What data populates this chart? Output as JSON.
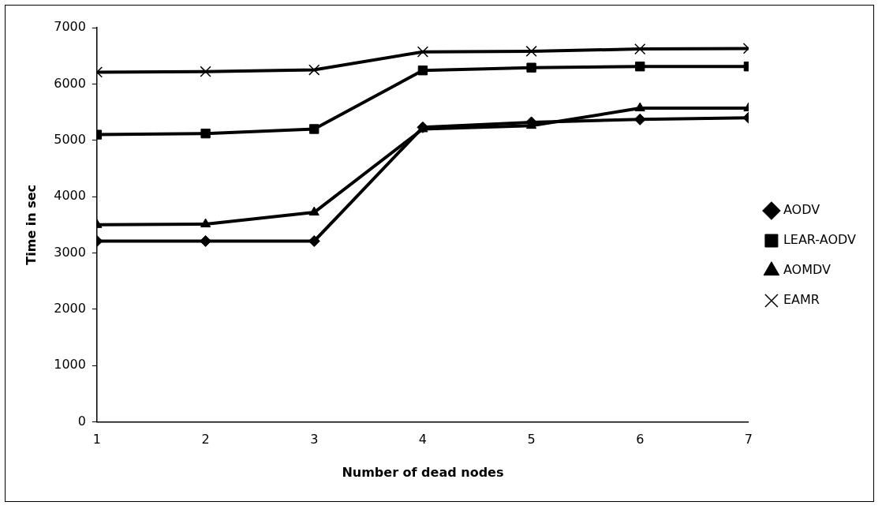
{
  "chart_data": {
    "type": "line",
    "xlabel": "Number of dead nodes",
    "ylabel": "Time in sec",
    "x": [
      1,
      2,
      3,
      4,
      5,
      6,
      7
    ],
    "xlim": [
      1,
      7
    ],
    "xticks": [
      1,
      2,
      3,
      4,
      5,
      6,
      7
    ],
    "ylim": [
      0,
      7000
    ],
    "yticks": [
      0,
      1000,
      2000,
      3000,
      4000,
      5000,
      6000,
      7000
    ],
    "grid": false,
    "legend": "right",
    "line_style": "solid",
    "series": [
      {
        "name": "AODV",
        "color": "#000000",
        "marker": "diamond",
        "values": [
          3210,
          3210,
          3210,
          5230,
          5320,
          5370,
          5400
        ]
      },
      {
        "name": "LEAR-AODV",
        "color": "#000000",
        "marker": "square",
        "values": [
          5100,
          5120,
          5200,
          6240,
          6290,
          6310,
          6310
        ]
      },
      {
        "name": "AOMDV",
        "color": "#000000",
        "marker": "triangle",
        "values": [
          3500,
          3510,
          3720,
          5200,
          5260,
          5570,
          5570
        ]
      },
      {
        "name": "EAMR",
        "color": "#000000",
        "marker": "cross",
        "values": [
          6210,
          6220,
          6250,
          6570,
          6580,
          6620,
          6630
        ]
      }
    ]
  }
}
